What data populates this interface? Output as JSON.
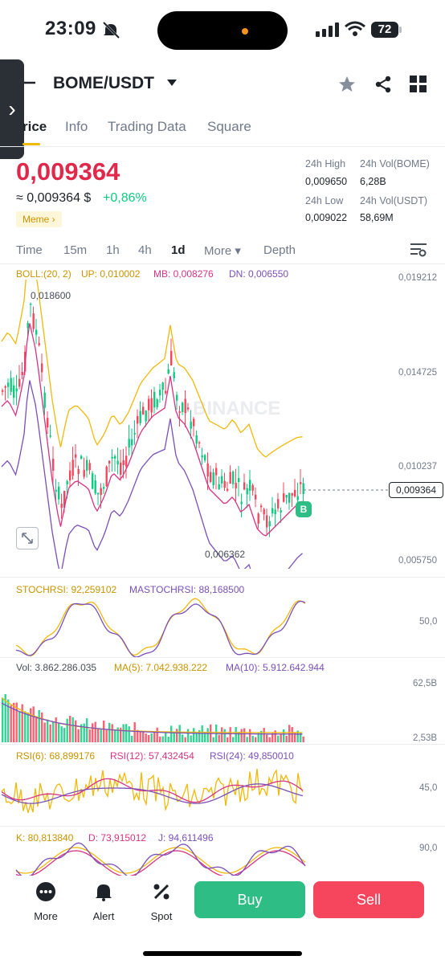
{
  "status_bar": {
    "time": "23:09",
    "battery": "72"
  },
  "header": {
    "pair": "BOME/USDT"
  },
  "tabs": [
    "rice",
    "Info",
    "Trading Data",
    "Square"
  ],
  "price": {
    "last": "0,009364",
    "approx": "≈ 0,009364 $",
    "change": "+0,86%",
    "tag": "Meme ›"
  },
  "stats": {
    "high_label": "24h High",
    "high_value": "0,009650",
    "vol_base_label": "24h Vol(BOME)",
    "vol_base_value": "6,28B",
    "low_label": "24h Low",
    "low_value": "0,009022",
    "vol_quote_label": "24h Vol(USDT)",
    "vol_quote_value": "58,69M"
  },
  "timeframes": [
    "Time",
    "15m",
    "1h",
    "4h",
    "1d",
    "More ▾",
    "Depth"
  ],
  "indicators": {
    "boll": {
      "name": "BOLL:(20, 2)",
      "up": "UP: 0,010002",
      "mb": "MB: 0,008276",
      "dn": "DN: 0,006550"
    },
    "stochrsi": {
      "a": "STOCHRSI: 92,259102",
      "b": "MASTOCHRSI: 88,168500"
    },
    "vol": {
      "a": "Vol: 3.862.286.035",
      "b": "MA(5): 7.042.938.222",
      "c": "MA(10): 5.912.642.944"
    },
    "rsi": {
      "a": "RSI(6): 68,899176",
      "b": "RSI(12): 57,432454",
      "c": "RSI(24): 49,850010"
    },
    "kdj": {
      "a": "K: 80,813840",
      "b": "D: 73,915012",
      "c": "J: 94,611496"
    }
  },
  "axes": {
    "main": [
      "0,019212",
      "0,014725",
      "0,010237",
      "0,005750"
    ],
    "stoch": "50,0",
    "vol": [
      "62,5B",
      "2,53B"
    ],
    "rsi": "45,0",
    "kdj": "90,0"
  },
  "annotations": {
    "high": "0,018600",
    "low": "0,006362",
    "current": "0,009364",
    "watermark": "BINANCE",
    "marker": "B"
  },
  "bottom_nav": {
    "more": "More",
    "alert": "Alert",
    "spot": "Spot",
    "buy": "Buy",
    "sell": "Sell"
  },
  "colors": {
    "up": "#0ecb81",
    "down": "#f6465d",
    "accent": "#f0b90b",
    "boll_up": "#f0b90b",
    "boll_mb": "#d63384",
    "boll_dn": "#7b4fb8"
  }
}
